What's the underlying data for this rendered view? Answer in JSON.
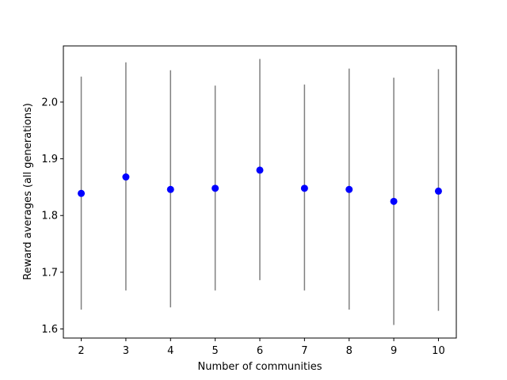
{
  "chart_data": {
    "type": "scatter",
    "title": "",
    "xlabel": "Number of communities",
    "ylabel": "Reward averages (all generations)",
    "x": [
      2,
      3,
      4,
      5,
      6,
      7,
      8,
      9,
      10
    ],
    "y": [
      1.839,
      1.868,
      1.846,
      1.848,
      1.88,
      1.848,
      1.846,
      1.825,
      1.843
    ],
    "error_low": [
      1.634,
      1.668,
      1.638,
      1.668,
      1.686,
      1.668,
      1.634,
      1.607,
      1.632
    ],
    "error_high": [
      2.045,
      2.07,
      2.056,
      2.029,
      2.076,
      2.031,
      2.059,
      2.043,
      2.058
    ],
    "xticks": [
      2,
      3,
      4,
      5,
      6,
      7,
      8,
      9,
      10
    ],
    "yticks": [
      "1.6",
      "1.7",
      "1.8",
      "1.9",
      "2.0"
    ],
    "ytick_values": [
      1.6,
      1.7,
      1.8,
      1.9,
      2.0
    ],
    "xlim": [
      1.6,
      10.4
    ],
    "ylim": [
      1.584,
      2.099
    ],
    "grid": false,
    "legend": "none",
    "colors": {
      "marker": "#0000ff",
      "errorbar": "#808080",
      "axes": "#000000"
    }
  }
}
